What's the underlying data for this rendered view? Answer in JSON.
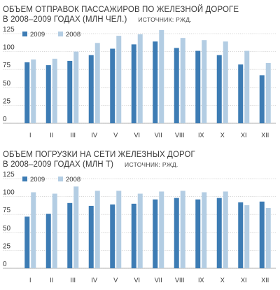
{
  "chart_data": [
    {
      "type": "bar",
      "title_line1": "ОБЪЕМ ОТПРАВОК ПАССАЖИРОВ ПО ЖЕЛЕЗНОЙ ДОРОГЕ",
      "title_line2": "В 2008–2009 ГОДАХ (МЛН ЧЕЛ.)",
      "source": "ИСТОЧНИК: РЖД.",
      "categories": [
        "I",
        "II",
        "III",
        "IV",
        "V",
        "VI",
        "VII",
        "VIII",
        "IX",
        "X",
        "XI",
        "XII"
      ],
      "series": [
        {
          "name": "2009",
          "color": "#3d7cb4",
          "values": [
            85,
            81,
            87,
            95,
            104,
            110,
            114,
            105,
            101,
            95,
            82,
            67
          ]
        },
        {
          "name": "2008",
          "color": "#b3cde3",
          "values": [
            89,
            90,
            100,
            112,
            122,
            124,
            130,
            119,
            116,
            114,
            101,
            84
          ]
        }
      ],
      "ylim": [
        0,
        125
      ],
      "yticks": [
        "0",
        "25",
        "50",
        "75",
        "100",
        "125"
      ],
      "xlabel": "",
      "ylabel": "",
      "grid": true,
      "legend": "top"
    },
    {
      "type": "bar",
      "title_line1": "ОБЪЕМ ПОГРУЗКИ НА СЕТИ ЖЕЛЕЗНЫХ ДОРОГ",
      "title_line2": "В 2008–2009 ГОДАХ (МЛН Т)",
      "source": "ИСТОЧНИК: РЖД.",
      "categories": [
        "I",
        "II",
        "III",
        "IV",
        "V",
        "VI",
        "VII",
        "VIII",
        "IX",
        "X",
        "XI",
        "XII"
      ],
      "series": [
        {
          "name": "2009",
          "color": "#3d7cb4",
          "values": [
            72,
            76,
            91,
            87,
            89,
            90,
            96,
            98,
            96,
            98,
            92,
            93
          ]
        },
        {
          "name": "2008",
          "color": "#b3cde3",
          "values": [
            106,
            104,
            114,
            108,
            108,
            104,
            107,
            108,
            106,
            107,
            88,
            84
          ]
        }
      ],
      "ylim": [
        0,
        125
      ],
      "yticks": [
        "0",
        "25",
        "50",
        "75",
        "100",
        "125"
      ],
      "xlabel": "",
      "ylabel": "",
      "grid": true,
      "legend": "top"
    }
  ]
}
